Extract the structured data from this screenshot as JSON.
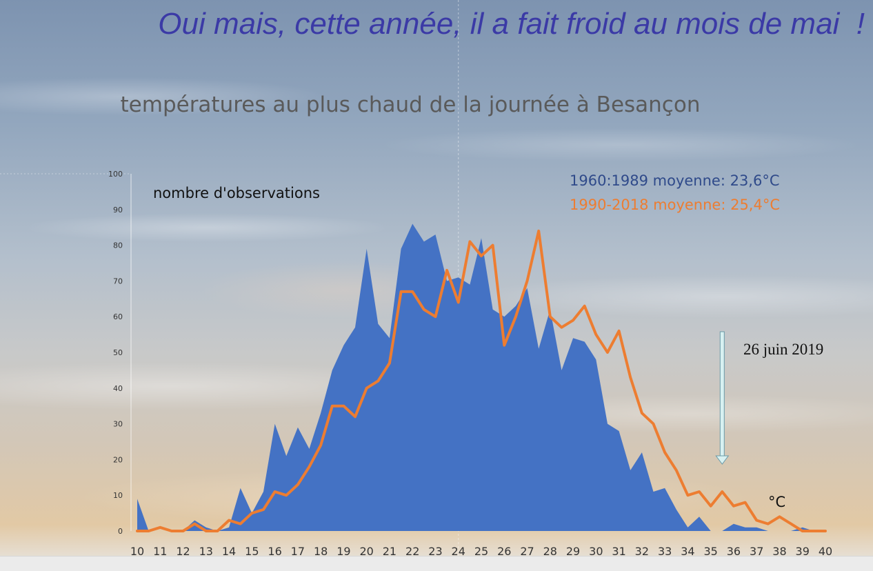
{
  "headline": "Oui mais, cette année, il a fait froid au mois de mai  !",
  "chart_data": {
    "type": "area",
    "title": "températures au plus chaud de la journée à Besançon",
    "ylabel": "nombre d'observations",
    "xlabel": "°C",
    "xlim": [
      10,
      40
    ],
    "ylim": [
      0,
      100
    ],
    "x_ticks": [
      10,
      11,
      12,
      13,
      14,
      15,
      16,
      17,
      18,
      19,
      20,
      21,
      22,
      23,
      24,
      25,
      26,
      27,
      28,
      29,
      30,
      31,
      32,
      33,
      34,
      35,
      36,
      37,
      38,
      39,
      40
    ],
    "y_ticks": [
      0,
      10,
      20,
      30,
      40,
      50,
      60,
      70,
      80,
      90,
      100
    ],
    "annotation": {
      "text": "26 juin 2019",
      "x": 35.5
    },
    "series": [
      {
        "name": "1960:1989 moyenne: 23,6°C",
        "type": "area",
        "color": "#4472c4",
        "points": [
          [
            10.0,
            9
          ],
          [
            10.5,
            0
          ],
          [
            11.0,
            0
          ],
          [
            11.5,
            0
          ],
          [
            12.0,
            0
          ],
          [
            12.5,
            3
          ],
          [
            13.0,
            1
          ],
          [
            13.5,
            0
          ],
          [
            14.0,
            1
          ],
          [
            14.5,
            12
          ],
          [
            15.0,
            5
          ],
          [
            15.5,
            11
          ],
          [
            16.0,
            30
          ],
          [
            16.5,
            21
          ],
          [
            17.0,
            29
          ],
          [
            17.5,
            23
          ],
          [
            18.0,
            33
          ],
          [
            18.5,
            45
          ],
          [
            19.0,
            52
          ],
          [
            19.5,
            57
          ],
          [
            20.0,
            79
          ],
          [
            20.5,
            58
          ],
          [
            21.0,
            54
          ],
          [
            21.5,
            79
          ],
          [
            22.0,
            86
          ],
          [
            22.5,
            81
          ],
          [
            23.0,
            83
          ],
          [
            23.5,
            70
          ],
          [
            24.0,
            71
          ],
          [
            24.5,
            69
          ],
          [
            25.0,
            82
          ],
          [
            25.5,
            62
          ],
          [
            26.0,
            60
          ],
          [
            26.5,
            63
          ],
          [
            27.0,
            68
          ],
          [
            27.5,
            51
          ],
          [
            28.0,
            62
          ],
          [
            28.5,
            45
          ],
          [
            29.0,
            54
          ],
          [
            29.5,
            53
          ],
          [
            30.0,
            48
          ],
          [
            30.5,
            30
          ],
          [
            31.0,
            28
          ],
          [
            31.5,
            17
          ],
          [
            32.0,
            22
          ],
          [
            32.5,
            11
          ],
          [
            33.0,
            12
          ],
          [
            33.5,
            6
          ],
          [
            34.0,
            1
          ],
          [
            34.5,
            4
          ],
          [
            35.0,
            0
          ],
          [
            35.5,
            0
          ],
          [
            36.0,
            2
          ],
          [
            36.5,
            1
          ],
          [
            37.0,
            1
          ],
          [
            37.5,
            0
          ],
          [
            38.0,
            0
          ],
          [
            38.5,
            0
          ],
          [
            39.0,
            1
          ],
          [
            39.5,
            0
          ],
          [
            40.0,
            0
          ]
        ]
      },
      {
        "name": "1990-2018 moyenne: 25,4°C",
        "type": "line",
        "color": "#ed7d31",
        "points": [
          [
            10.0,
            0
          ],
          [
            10.5,
            0
          ],
          [
            11.0,
            1
          ],
          [
            11.5,
            0
          ],
          [
            12.0,
            0
          ],
          [
            12.5,
            2
          ],
          [
            13.0,
            0
          ],
          [
            13.5,
            0
          ],
          [
            14.0,
            3
          ],
          [
            14.5,
            2
          ],
          [
            15.0,
            5
          ],
          [
            15.5,
            6
          ],
          [
            16.0,
            11
          ],
          [
            16.5,
            10
          ],
          [
            17.0,
            13
          ],
          [
            17.5,
            18
          ],
          [
            18.0,
            24
          ],
          [
            18.5,
            35
          ],
          [
            19.0,
            35
          ],
          [
            19.5,
            32
          ],
          [
            20.0,
            40
          ],
          [
            20.5,
            42
          ],
          [
            21.0,
            47
          ],
          [
            21.5,
            67
          ],
          [
            22.0,
            67
          ],
          [
            22.5,
            62
          ],
          [
            23.0,
            60
          ],
          [
            23.5,
            73
          ],
          [
            24.0,
            64
          ],
          [
            24.5,
            81
          ],
          [
            25.0,
            77
          ],
          [
            25.5,
            80
          ],
          [
            26.0,
            52
          ],
          [
            26.5,
            60
          ],
          [
            27.0,
            70
          ],
          [
            27.5,
            84
          ],
          [
            28.0,
            60
          ],
          [
            28.5,
            57
          ],
          [
            29.0,
            59
          ],
          [
            29.5,
            63
          ],
          [
            30.0,
            55
          ],
          [
            30.5,
            50
          ],
          [
            31.0,
            56
          ],
          [
            31.5,
            43
          ],
          [
            32.0,
            33
          ],
          [
            32.5,
            30
          ],
          [
            33.0,
            22
          ],
          [
            33.5,
            17
          ],
          [
            34.0,
            10
          ],
          [
            34.5,
            11
          ],
          [
            35.0,
            7
          ],
          [
            35.5,
            11
          ],
          [
            36.0,
            7
          ],
          [
            36.5,
            8
          ],
          [
            37.0,
            3
          ],
          [
            37.5,
            2
          ],
          [
            38.0,
            4
          ],
          [
            38.5,
            2
          ],
          [
            39.0,
            0
          ],
          [
            39.5,
            0
          ],
          [
            40.0,
            0
          ]
        ]
      }
    ]
  }
}
